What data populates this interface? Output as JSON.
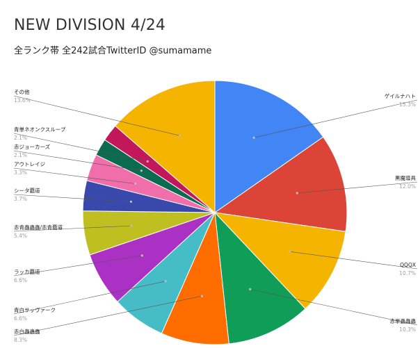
{
  "title": "NEW DIVISION 4/24",
  "subtitle": "全ランク帯 全242試合TwitterID @sumamame",
  "chart_data": {
    "type": "pie",
    "title": "NEW DIVISION 4/24",
    "subtitle": "全ランク帯 全242試合TwitterID @sumamame",
    "slices": [
      {
        "label": "ゲイルナハト",
        "value": 15.3,
        "pct_label": "15.3%",
        "color": "#4285f4"
      },
      {
        "label": "黒魔導具",
        "value": 12.0,
        "pct_label": "12.0%",
        "color": "#db4437"
      },
      {
        "label": "QQQX",
        "value": 10.7,
        "pct_label": "10.7%",
        "color": "#f4b400"
      },
      {
        "label": "赤単蟲蟲蟲",
        "value": 10.3,
        "pct_label": "10.3%",
        "color": "#0f9d58"
      },
      {
        "label": "赤白蟲蟲蟲",
        "value": 8.3,
        "pct_label": "8.3%",
        "color": "#ff6d00"
      },
      {
        "label": "青白サッヴァーク",
        "value": 6.6,
        "pct_label": "6.6%",
        "color": "#46bdc6"
      },
      {
        "label": "ラッカ覇道",
        "value": 6.6,
        "pct_label": "6.6%",
        "color": "#ab30c4"
      },
      {
        "label": "赤青蟲蟲蟲/赤青覇道",
        "value": 5.4,
        "pct_label": "5.4%",
        "color": "#c0bf21"
      },
      {
        "label": "シータ覇道",
        "value": 3.7,
        "pct_label": "3.7%",
        "color": "#3949ab"
      },
      {
        "label": "アウトレイジ",
        "value": 3.3,
        "pct_label": "3.3%",
        "color": "#f06eaa"
      },
      {
        "label": "赤ジョーカーズ",
        "value": 2.1,
        "pct_label": "2.1%",
        "color": "#0b6b4f"
      },
      {
        "label": "青単ネオンクスループ",
        "value": 2.1,
        "pct_label": "2.1%",
        "color": "#c2185b"
      },
      {
        "label": "その他",
        "value": 13.6,
        "pct_label": "13.6%",
        "color": "#f4b400"
      }
    ]
  }
}
